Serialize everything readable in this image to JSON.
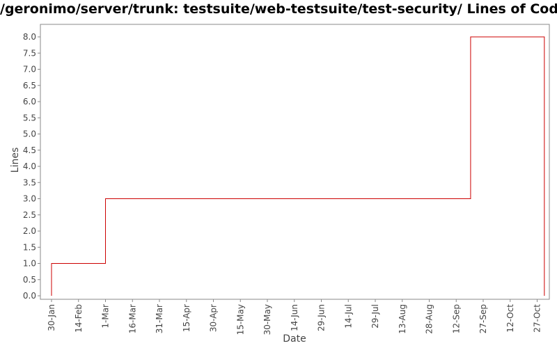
{
  "chart_data": {
    "type": "line",
    "title": "/geronimo/server/trunk: testsuite/web-testsuite/test-security/ Lines of Code",
    "xlabel": "Date",
    "ylabel": "Lines",
    "ylim": [
      0,
      8.2
    ],
    "y_ticks": [
      "0.0",
      "0.5",
      "1.0",
      "1.5",
      "2.0",
      "2.5",
      "3.0",
      "3.5",
      "4.0",
      "4.5",
      "5.0",
      "5.5",
      "6.0",
      "6.5",
      "7.0",
      "7.5",
      "8.0"
    ],
    "x_ticks": [
      "30-Jan",
      "14-Feb",
      "1-Mar",
      "16-Mar",
      "31-Mar",
      "15-Apr",
      "30-Apr",
      "15-May",
      "30-May",
      "14-Jun",
      "29-Jun",
      "14-Jul",
      "29-Jul",
      "13-Aug",
      "28-Aug",
      "12-Sep",
      "27-Sep",
      "12-Oct",
      "27-Oct"
    ],
    "x_axis": "dates (daily), first tick 30-Jan, 15-day tick spacing",
    "step_style": "step-after",
    "grid": false,
    "series": [
      {
        "color": "#cc0000",
        "points": [
          {
            "x": "30-Jan",
            "y": 0
          },
          {
            "x": "30-Jan",
            "y": 1
          },
          {
            "x": "1-Mar",
            "y": 3
          },
          {
            "x": "20-Sep",
            "y": 8
          },
          {
            "x": "31-Oct",
            "y": 0
          }
        ]
      }
    ]
  }
}
